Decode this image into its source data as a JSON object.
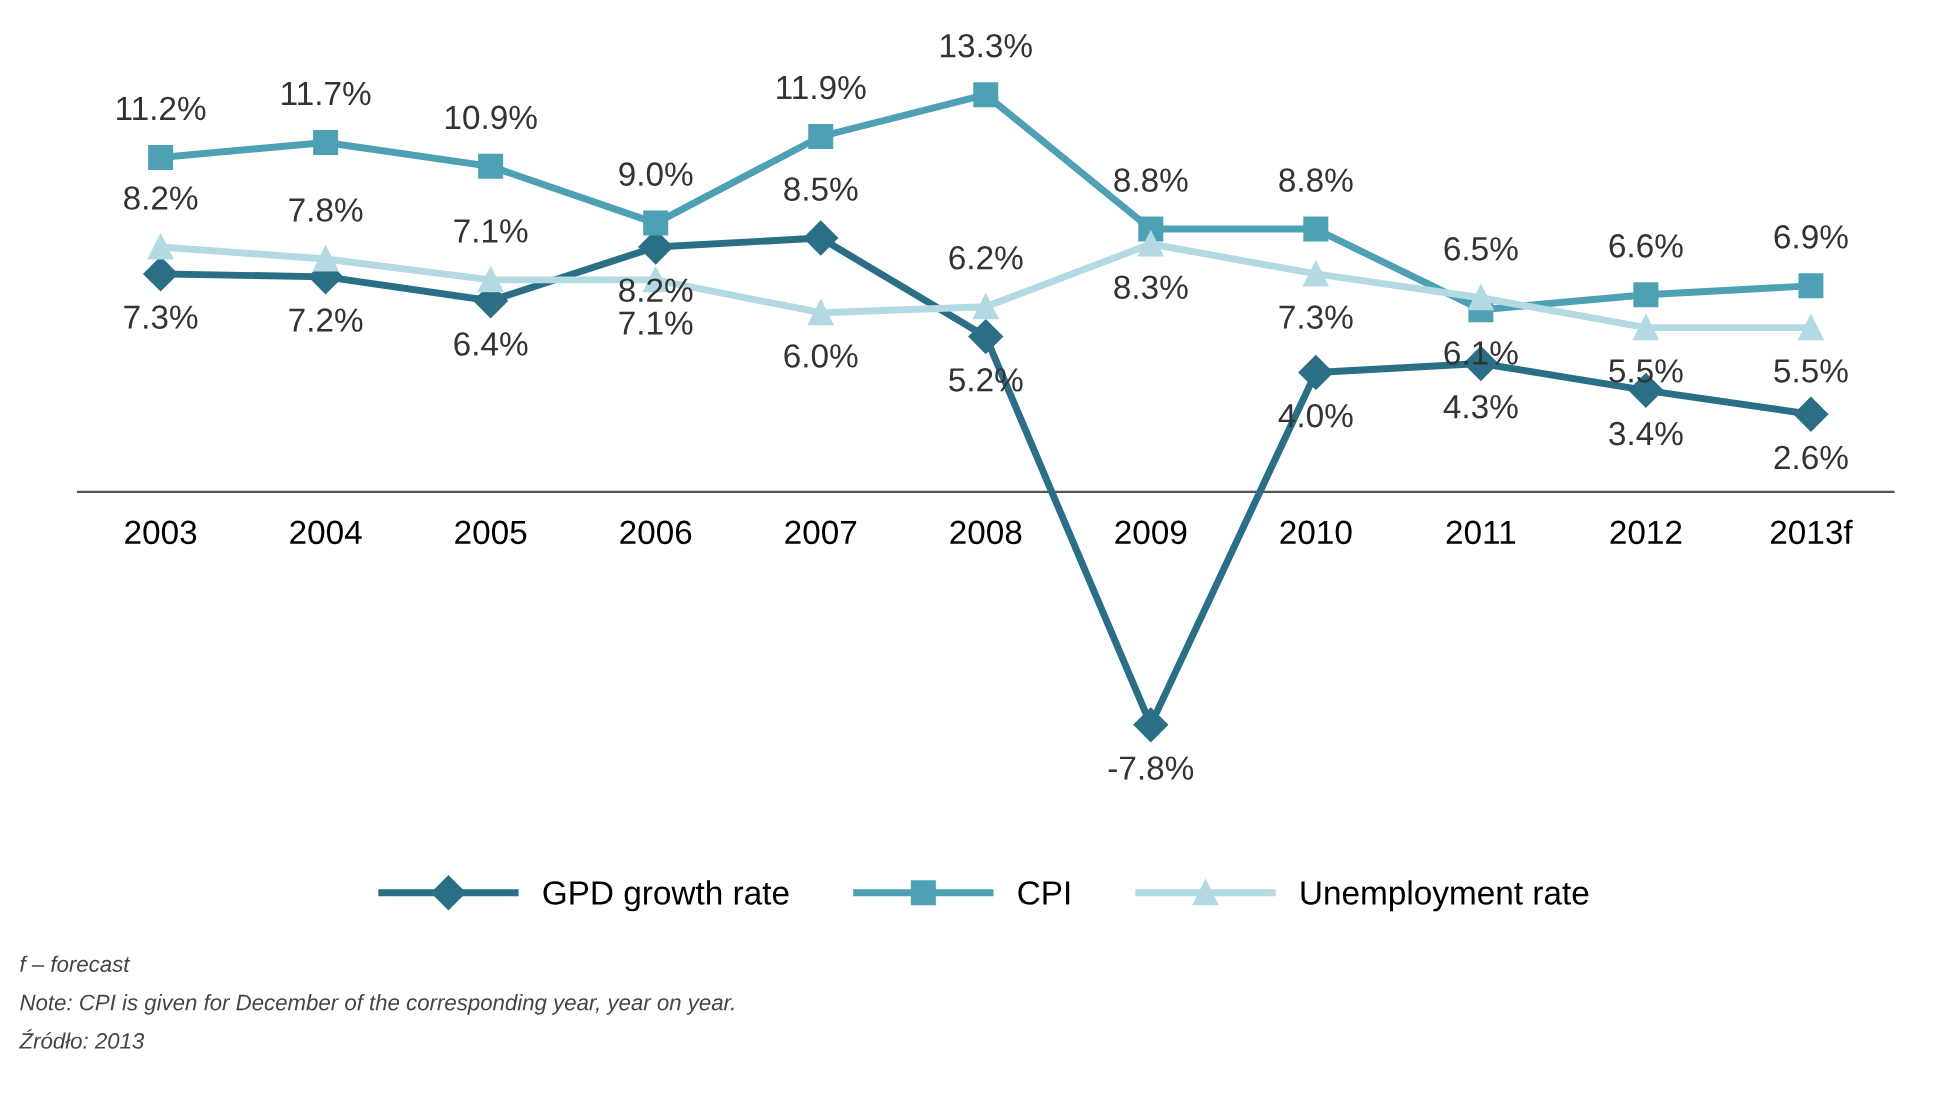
{
  "chart_data": {
    "type": "line",
    "categories": [
      "2003",
      "2004",
      "2005",
      "2006",
      "2007",
      "2008",
      "2009",
      "2010",
      "2011",
      "2012",
      "2013f"
    ],
    "series": [
      {
        "name": "GPD growth rate",
        "color": "#2a6f86",
        "marker": "diamond",
        "values": [
          7.3,
          7.2,
          6.4,
          8.2,
          8.5,
          5.2,
          -7.8,
          4.0,
          4.3,
          3.4,
          2.6
        ],
        "value_labels": [
          "7.3%",
          "7.2%",
          "6.4%",
          "8.2%",
          "8.5%",
          "5.2%",
          "-7.8%",
          "4.0%",
          "4.3%",
          "3.4%",
          "2.6%"
        ]
      },
      {
        "name": "CPI",
        "color": "#4ea1b5",
        "marker": "square",
        "values": [
          11.2,
          11.7,
          10.9,
          9.0,
          11.9,
          13.3,
          8.8,
          8.8,
          6.1,
          6.6,
          6.9
        ],
        "value_labels": [
          "11.2%",
          "11.7%",
          "10.9%",
          "9.0%",
          "11.9%",
          "13.3%",
          "8.8%",
          "8.8%",
          "6.1%",
          "6.6%",
          "6.9%"
        ]
      },
      {
        "name": "Unemployment rate",
        "color": "#b3d9e3",
        "marker": "triangle",
        "values": [
          8.2,
          7.8,
          7.1,
          7.1,
          6.0,
          6.2,
          8.3,
          7.3,
          6.5,
          5.5,
          5.5
        ],
        "value_labels": [
          "8.2%",
          "7.8%",
          "7.1%",
          "7.1%",
          "6.0%",
          "6.2%",
          "8.3%",
          "7.3%",
          "6.5%",
          "5.5%",
          "5.5%"
        ]
      }
    ],
    "legend": "bottom",
    "annotations": [
      "f – forecast",
      "Note: CPI is given for December of the corresponding year, year on year.",
      "Źródło: 2013"
    ]
  }
}
